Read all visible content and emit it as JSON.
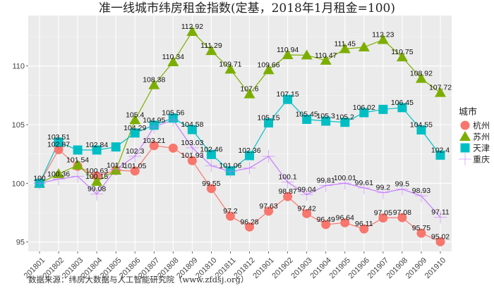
{
  "chart_data": {
    "type": "line",
    "title": "准一线城市纬房租金指数(定基，2018年1月租金=100)",
    "xlabel": "",
    "ylabel": "",
    "ylim": [
      94.2,
      114.3
    ],
    "yticks": [
      95,
      100,
      105,
      110
    ],
    "grid": true,
    "legend_title": "城市",
    "legend_position": "right",
    "source": "数据来源：纬房大数据与人工智能研究院（www.zfdsj.org）",
    "x": [
      "201801",
      "201802",
      "201803",
      "201804",
      "201805",
      "201806",
      "201807",
      "201808",
      "201809",
      "201810",
      "201811",
      "201812",
      "201901",
      "201902",
      "201903",
      "201904",
      "201905",
      "201906",
      "201907",
      "201908",
      "201909",
      "201910"
    ],
    "series": [
      {
        "name": "杭州",
        "color": "#F8766D",
        "marker": "circle",
        "values": [
          100,
          102.87,
          101.45,
          100.63,
          101.1,
          101.05,
          103.21,
          103.0,
          101.93,
          99.55,
          97.2,
          96.28,
          97.63,
          98.87,
          97.42,
          96.49,
          96.64,
          96.11,
          97.05,
          97.08,
          95.75,
          95.02
        ],
        "labels": [
          "",
          "102.87",
          "",
          "100.63",
          "101.1",
          "101.05",
          "103.21",
          "",
          "101.93",
          "99.55",
          "97.2",
          "96.28",
          "97.63",
          "98.87",
          "97.42",
          "96.49",
          "96.64",
          "96.11",
          "97.05",
          "97.08",
          "95.75",
          "95.02"
        ]
      },
      {
        "name": "苏州",
        "color": "#7CAE00",
        "marker": "triangle",
        "values": [
          100,
          100.8,
          101.54,
          100.15,
          101.1,
          105.4,
          108.38,
          110.34,
          112.92,
          111.29,
          109.71,
          107.6,
          109.66,
          110.94,
          110.92,
          110.47,
          111.45,
          111.6,
          112.23,
          110.75,
          108.92,
          107.72
        ],
        "labels": [
          "",
          "",
          "101.54",
          "100.15",
          "",
          "105.4",
          "108.38",
          "110.34",
          "112.92",
          "111.29",
          "109.71",
          "107.6",
          "109.66",
          "110.94",
          "",
          "110.47",
          "111.45",
          "",
          "112.23",
          "110.75",
          "108.92",
          "107.72"
        ]
      },
      {
        "name": "天津",
        "color": "#00BFC4",
        "marker": "square",
        "values": [
          100,
          103.51,
          102.84,
          102.84,
          103.1,
          104.29,
          104.95,
          105.56,
          104.58,
          102.46,
          101.06,
          102.36,
          105.15,
          107.15,
          105.45,
          105.3,
          105.2,
          106.02,
          106.3,
          106.45,
          104.55,
          102.4
        ],
        "labels": [
          "100",
          "103.51",
          "",
          "102.84",
          "",
          "104.29",
          "104.95",
          "105.56",
          "104.58",
          "102.46",
          "101.06",
          "102.36",
          "105.15",
          "107.15",
          "105.45",
          "105.3",
          "105.2",
          "106.02",
          "",
          "106.45",
          "104.55",
          "102.4"
        ]
      },
      {
        "name": "重庆",
        "color": "#C77CFF",
        "marker": "cross",
        "values": [
          100,
          100.36,
          100.6,
          99.08,
          101.2,
          102.3,
          104.8,
          105.4,
          103.03,
          101.5,
          101.0,
          101.3,
          102.3,
          100.1,
          99.04,
          99.81,
          100.01,
          99.61,
          99.2,
          99.5,
          98.93,
          97.11
        ],
        "labels": [
          "",
          "100.36",
          "",
          "99.08",
          "",
          "102.3",
          "",
          "",
          "103.03",
          "",
          "",
          "",
          "",
          "100.1",
          "99.04",
          "99.81",
          "100.01",
          "99.61",
          "99.2",
          "99.5",
          "98.93",
          "97.11"
        ]
      }
    ]
  }
}
